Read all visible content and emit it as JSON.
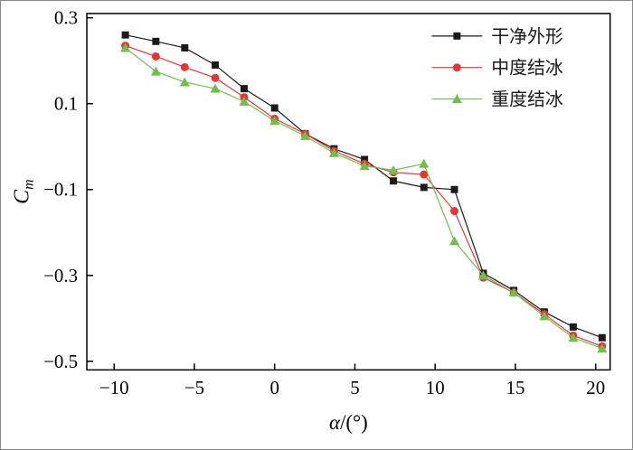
{
  "figure": {
    "background": "#ffffff",
    "border_color": "#8a8a8a",
    "axis_color": "#000000"
  },
  "chart_data": {
    "type": "line",
    "title": "",
    "xlabel": {
      "italic": "α",
      "rest": "/(°)"
    },
    "ylabel": {
      "italic": "C",
      "sub": "m"
    },
    "xlim": [
      -11.7,
      20.9
    ],
    "ylim": [
      -0.52,
      0.31
    ],
    "xticks": [
      -10,
      -5,
      0,
      5,
      10,
      15,
      20
    ],
    "xtick_labels": [
      "−10",
      "−5",
      "0",
      "5",
      "10",
      "15",
      "20"
    ],
    "yticks": [
      -0.5,
      -0.3,
      -0.1,
      0.1,
      0.3
    ],
    "ytick_labels": [
      "−0.5",
      "−0.3",
      "−0.1",
      "0.1",
      "0.3"
    ],
    "grid": false,
    "legend_position": "top-right",
    "x": [
      -9.3,
      -7.4,
      -5.6,
      -3.7,
      -1.9,
      0,
      1.9,
      3.7,
      5.6,
      7.4,
      9.3,
      11.2,
      13.0,
      14.9,
      16.8,
      18.6,
      20.4
    ],
    "series": [
      {
        "name": "干净外形",
        "color": "#1a1a1a",
        "marker": "square",
        "values": [
          0.26,
          0.245,
          0.23,
          0.19,
          0.135,
          0.09,
          0.03,
          -0.005,
          -0.03,
          -0.08,
          -0.095,
          -0.1,
          -0.295,
          -0.335,
          -0.385,
          -0.42,
          -0.445
        ]
      },
      {
        "name": "中度结冰",
        "color": "#e53535",
        "marker": "circle",
        "values": [
          0.235,
          0.21,
          0.185,
          0.16,
          0.115,
          0.065,
          0.03,
          -0.01,
          -0.04,
          -0.06,
          -0.065,
          -0.15,
          -0.305,
          -0.34,
          -0.39,
          -0.44,
          -0.465
        ]
      },
      {
        "name": "重度结冰",
        "color": "#6fbf4a",
        "marker": "triangle",
        "values": [
          0.23,
          0.175,
          0.15,
          0.135,
          0.105,
          0.06,
          0.025,
          -0.015,
          -0.045,
          -0.055,
          -0.04,
          -0.22,
          -0.3,
          -0.34,
          -0.395,
          -0.445,
          -0.47
        ]
      }
    ]
  }
}
